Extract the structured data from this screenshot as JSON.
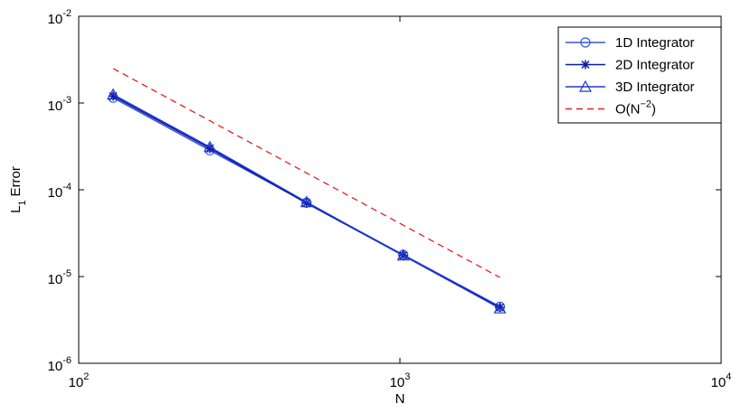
{
  "chart_data": {
    "type": "line",
    "xlabel": "N",
    "ylabel": "L",
    "ylabel_subscript": "1",
    "ylabel_suffix": "Error",
    "log_x": true,
    "log_y": true,
    "legend": "top-right",
    "x": [
      128,
      256,
      512,
      1024,
      2048
    ],
    "xlim": [
      100,
      10000
    ],
    "xticks": [
      {
        "value": 100,
        "label": "10",
        "exponent": "2"
      },
      {
        "value": 1000,
        "label": "10",
        "exponent": "3"
      },
      {
        "value": 10000,
        "label": "10",
        "exponent": "4"
      }
    ],
    "ylim": [
      1e-06,
      0.01
    ],
    "yticks": [
      {
        "value": 1e-06,
        "label": "10",
        "exponent": "-6"
      },
      {
        "value": 1e-05,
        "label": "10",
        "exponent": "-5"
      },
      {
        "value": 0.0001,
        "label": "10",
        "exponent": "-4"
      },
      {
        "value": 0.001,
        "label": "10",
        "exponent": "-3"
      },
      {
        "value": 0.01,
        "label": "10",
        "exponent": "-2"
      }
    ],
    "series": [
      {
        "name": "1D Integrator",
        "color": "#3a55e0",
        "marker": "circle",
        "values": [
          0.00115,
          0.000285,
          7.1e-05,
          1.78e-05,
          4.5e-06
        ]
      },
      {
        "name": "2D Integrator",
        "color": "#0a1aa8",
        "marker": "star",
        "values": [
          0.0012,
          0.0003,
          7e-05,
          1.75e-05,
          4.4e-06
        ]
      },
      {
        "name": "3D Integrator",
        "color": "#2038c8",
        "marker": "triangle",
        "values": [
          0.00125,
          0.00031,
          7.2e-05,
          1.75e-05,
          4.3e-06
        ]
      },
      {
        "name": "O(N",
        "name_sup": "−2",
        "name_suffix": ")",
        "color": "#e02020",
        "dash": true,
        "values": [
          0.0025,
          0.000625,
          0.00015625,
          3.90625e-05,
          9.7656e-06
        ]
      }
    ]
  }
}
